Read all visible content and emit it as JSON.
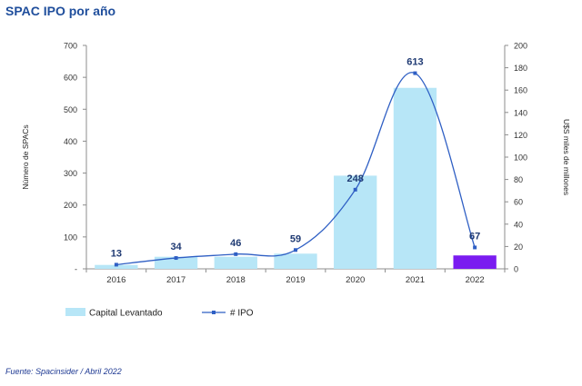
{
  "title": "SPAC IPO por año",
  "source": "Fuente: Spacinsider / Abril 2022",
  "chart_data": {
    "type": "bar+line",
    "categories": [
      "2016",
      "2017",
      "2018",
      "2019",
      "2020",
      "2021",
      "2022"
    ],
    "bar_series": {
      "name": "Capital Levantado",
      "axis": "right",
      "values": [
        3.5,
        10.8,
        10.8,
        13.6,
        83.4,
        162.0,
        12.0
      ],
      "color": "#b7e6f7",
      "highlight_color": "#7a1cf0",
      "highlight_index": 6
    },
    "line_series": {
      "name": "# IPO",
      "axis": "left",
      "values": [
        13,
        34,
        46,
        59,
        248,
        613,
        67
      ],
      "labels": [
        "13",
        "34",
        "46",
        "59",
        "248",
        "613",
        "67"
      ],
      "color": "#2f5fc4"
    },
    "y_left": {
      "label": "Número de SPACs",
      "ticks": [
        "-",
        "100",
        "200",
        "300",
        "400",
        "500",
        "600",
        "700"
      ],
      "ylim": [
        0,
        700
      ]
    },
    "y_right": {
      "label": "U$S miles de millones",
      "ticks": [
        "0",
        "20",
        "40",
        "60",
        "80",
        "100",
        "120",
        "140",
        "160",
        "180",
        "200"
      ],
      "ylim": [
        0,
        200
      ]
    },
    "legend": {
      "position": "bottom-left"
    }
  }
}
